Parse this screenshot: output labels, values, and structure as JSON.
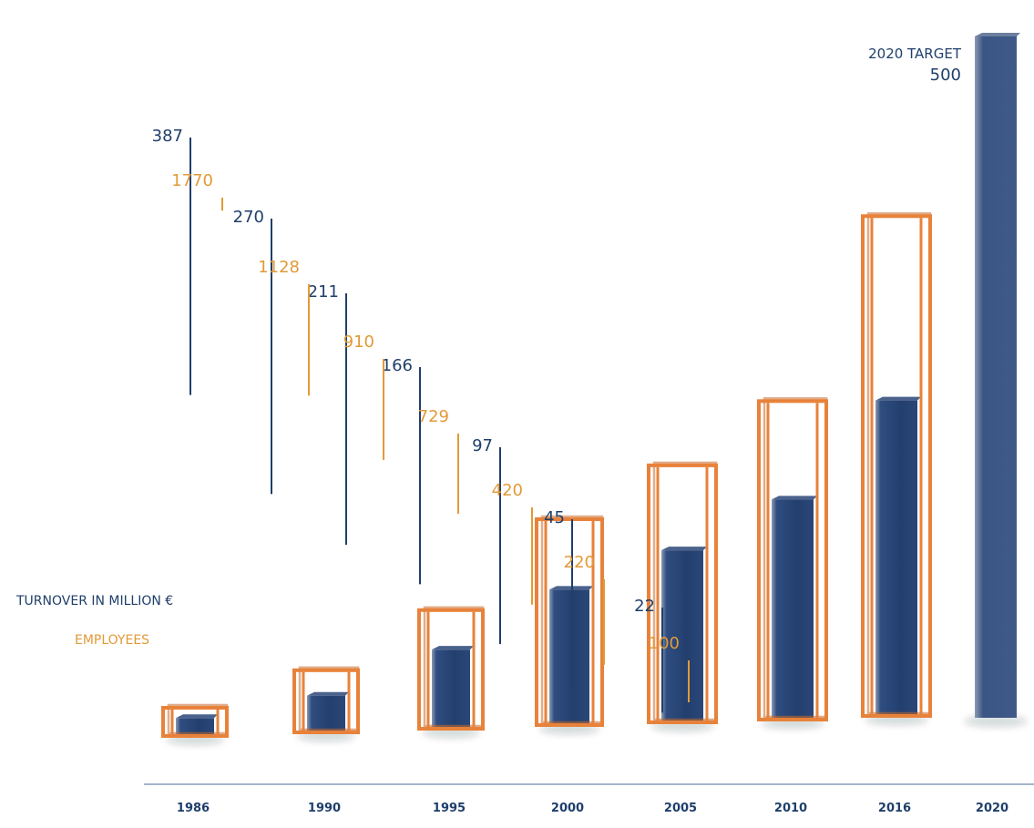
{
  "chart_data": {
    "type": "bar",
    "categories": [
      "1986",
      "1990",
      "1995",
      "2000",
      "2005",
      "2010",
      "2016",
      "2020"
    ],
    "series": [
      {
        "name": "TURNOVER IN MILLION €",
        "values": [
          22,
          45,
          97,
          166,
          211,
          270,
          387,
          500
        ],
        "color": "#223f6e"
      },
      {
        "name": "EMPLOYEES",
        "values": [
          100,
          220,
          420,
          729,
          910,
          1128,
          1770,
          null
        ],
        "color": "#e8823a"
      }
    ],
    "target": {
      "label": "2020 TARGET",
      "value": 500,
      "category": "2020"
    },
    "colors": {
      "turnover": "#223f6e",
      "turnover_label": "#1f3f6b",
      "employees_frame": "#e8823a",
      "employees_label": "#e29a37",
      "axis": "#6a88a6"
    }
  }
}
